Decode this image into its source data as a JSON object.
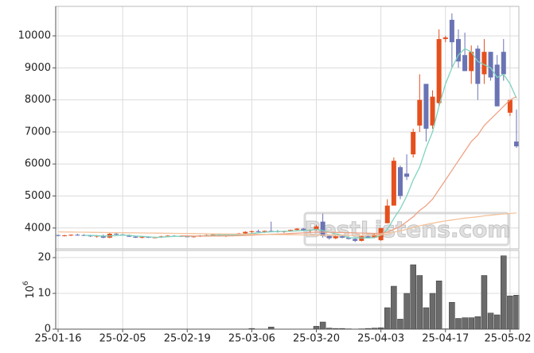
{
  "chart_data": {
    "type": "candlestick",
    "categories": [
      "25-01-16",
      null,
      null,
      null,
      null,
      null,
      null,
      null,
      null,
      null,
      "25-02-05",
      null,
      null,
      null,
      null,
      null,
      null,
      null,
      null,
      null,
      "25-02-19",
      null,
      null,
      null,
      null,
      null,
      null,
      null,
      null,
      null,
      "25-03-06",
      null,
      null,
      null,
      null,
      null,
      null,
      null,
      null,
      null,
      "25-03-20",
      null,
      null,
      null,
      null,
      null,
      null,
      null,
      null,
      null,
      "25-04-03",
      null,
      null,
      null,
      null,
      null,
      null,
      null,
      null,
      null,
      "25-04-17",
      null,
      null,
      null,
      null,
      null,
      null,
      null,
      null,
      null,
      "25-05-02",
      null
    ],
    "open": [
      3780,
      3760,
      3770,
      3790,
      3780,
      3770,
      3740,
      3760,
      3700,
      3820,
      3800,
      3780,
      3730,
      3700,
      3720,
      3700,
      3710,
      3740,
      3760,
      3750,
      3740,
      3730,
      3740,
      3770,
      3780,
      3800,
      3750,
      3780,
      3790,
      3830,
      3880,
      3900,
      3880,
      3910,
      3900,
      3880,
      3900,
      3940,
      3980,
      3920,
      3940,
      4200,
      3750,
      3680,
      3740,
      3700,
      3660,
      3600,
      3740,
      3700,
      3620,
      4150,
      4700,
      5900,
      5700,
      6300,
      7200,
      8500,
      7200,
      7900,
      9900,
      10500,
      9900,
      9400,
      8900,
      9600,
      8800,
      9500,
      9100,
      9500,
      7600,
      6700
    ],
    "high": [
      3800,
      3790,
      3800,
      3820,
      3810,
      3790,
      3780,
      3800,
      3850,
      3850,
      3820,
      3800,
      3760,
      3740,
      3740,
      3730,
      3760,
      3780,
      3780,
      3770,
      3760,
      3750,
      3780,
      3800,
      3820,
      3820,
      3790,
      3800,
      3850,
      3900,
      3920,
      3950,
      3920,
      4200,
      3940,
      3920,
      3950,
      4000,
      4000,
      3960,
      4100,
      4450,
      3800,
      3760,
      3780,
      3740,
      3700,
      3760,
      3780,
      3820,
      4000,
      4900,
      6200,
      5950,
      6300,
      7100,
      8800,
      8500,
      8300,
      10200,
      10000,
      10700,
      10200,
      10100,
      9700,
      9700,
      9900,
      9500,
      9400,
      9900,
      8000,
      7700
    ],
    "low": [
      3740,
      3740,
      3750,
      3760,
      3750,
      3720,
      3700,
      3680,
      3680,
      3780,
      3760,
      3720,
      3690,
      3680,
      3690,
      3680,
      3690,
      3720,
      3730,
      3720,
      3710,
      3700,
      3720,
      3740,
      3760,
      3740,
      3720,
      3740,
      3770,
      3800,
      3840,
      3860,
      3850,
      3880,
      3860,
      3850,
      3880,
      3920,
      3900,
      3880,
      3920,
      3700,
      3640,
      3650,
      3680,
      3640,
      3560,
      3580,
      3680,
      3680,
      3600,
      4150,
      4700,
      4900,
      5500,
      6200,
      7000,
      6700,
      7100,
      7800,
      9800,
      9000,
      9000,
      8900,
      8500,
      8000,
      8500,
      8600,
      7800,
      8600,
      7500,
      6500
    ],
    "close": [
      3760,
      3770,
      3790,
      3780,
      3770,
      3740,
      3760,
      3700,
      3820,
      3800,
      3780,
      3730,
      3700,
      3720,
      3700,
      3710,
      3740,
      3760,
      3750,
      3740,
      3730,
      3740,
      3770,
      3780,
      3800,
      3750,
      3780,
      3790,
      3830,
      3880,
      3900,
      3880,
      3910,
      3900,
      3880,
      3900,
      3940,
      3980,
      3920,
      3940,
      4050,
      3750,
      3680,
      3740,
      3700,
      3660,
      3600,
      3740,
      3700,
      3800,
      4000,
      4700,
      6100,
      5000,
      5600,
      7000,
      8000,
      7100,
      8100,
      9900,
      9950,
      9800,
      9200,
      8900,
      9500,
      8500,
      9500,
      8700,
      7800,
      8800,
      8000,
      6550
    ],
    "up_color": "#e4501e",
    "down_color": "#6a73b4",
    "ylim": [
      3350,
      10920
    ],
    "yticks": [
      4000,
      5000,
      6000,
      7000,
      8000,
      9000,
      10000
    ],
    "grid": true,
    "moving_averages": [
      {
        "color": "#7fd3bf",
        "values": [
          null,
          null,
          null,
          null,
          3775,
          3770,
          3765,
          3750,
          3755,
          3765,
          3780,
          3770,
          3750,
          3740,
          3725,
          3710,
          3715,
          3730,
          3740,
          3745,
          3745,
          3745,
          3750,
          3760,
          3770,
          3780,
          3780,
          3790,
          3790,
          3805,
          3830,
          3850,
          3870,
          3880,
          3890,
          3895,
          3900,
          3910,
          3920,
          3930,
          3960,
          3920,
          3870,
          3820,
          3780,
          3700,
          3690,
          3690,
          3690,
          3700,
          3780,
          3950,
          4300,
          4600,
          5000,
          5500,
          5900,
          6500,
          7000,
          7800,
          8500,
          9000,
          9400,
          9600,
          9500,
          9200,
          9100,
          9000,
          8700,
          8800,
          8500,
          8050
        ]
      },
      {
        "color": "#eea285",
        "values": [
          null,
          null,
          null,
          null,
          null,
          null,
          null,
          null,
          null,
          null,
          null,
          null,
          null,
          null,
          null,
          null,
          null,
          null,
          null,
          3760,
          3755,
          3750,
          3748,
          3748,
          3750,
          3752,
          3755,
          3758,
          3762,
          3770,
          3778,
          3786,
          3795,
          3805,
          3812,
          3820,
          3830,
          3840,
          3850,
          3860,
          3870,
          3870,
          3868,
          3865,
          3860,
          3855,
          3850,
          3845,
          3840,
          3835,
          3830,
          3870,
          3960,
          4050,
          4200,
          4350,
          4550,
          4700,
          4900,
          5200,
          5500,
          5800,
          6100,
          6400,
          6700,
          6900,
          7200,
          7400,
          7600,
          7800,
          8000,
          8100
        ]
      },
      {
        "color": "#f3c39c",
        "values": [
          3880,
          3877,
          3875,
          3872,
          3870,
          3867,
          3865,
          3862,
          3860,
          3857,
          3855,
          3852,
          3850,
          3847,
          3845,
          3842,
          3840,
          3837,
          3835,
          3832,
          3830,
          3827,
          3825,
          3822,
          3820,
          3817,
          3815,
          3812,
          3810,
          3807,
          3805,
          3802,
          3800,
          3797,
          3795,
          3792,
          3790,
          3787,
          3785,
          3782,
          3780,
          3780,
          3778,
          3776,
          3774,
          3772,
          3770,
          3772,
          3774,
          3778,
          3790,
          3820,
          3870,
          3910,
          3960,
          4020,
          4070,
          4110,
          4150,
          4190,
          4220,
          4250,
          4280,
          4310,
          4330,
          4350,
          4380,
          4400,
          4420,
          4440,
          4455,
          4470
        ]
      }
    ],
    "volume": {
      "color": "#6b6b6b",
      "values": [
        0,
        0,
        0,
        0,
        0,
        0,
        0,
        0,
        0,
        0,
        0,
        0,
        0,
        0,
        0,
        0,
        0,
        0,
        0,
        0,
        0,
        0,
        0,
        0,
        0,
        0,
        0,
        0,
        0,
        0,
        0.2,
        0,
        0,
        0.6,
        0,
        0,
        0,
        0,
        0,
        0,
        0.8,
        2,
        0.3,
        0.2,
        0.2,
        0.1,
        0,
        0.1,
        0.2,
        0.3,
        0.4,
        6,
        12,
        2.8,
        10,
        18,
        15,
        6,
        10,
        13.5,
        0.1,
        7.5,
        3,
        3.2,
        3.2,
        3.5,
        15,
        4.5,
        4,
        20.5,
        9.3,
        9.5
      ],
      "ylim": [
        0,
        22
      ],
      "yticks": [
        0,
        10,
        20
      ],
      "unit_base": "10",
      "unit_exponent": "6"
    },
    "watermark": "BestListens.com"
  }
}
